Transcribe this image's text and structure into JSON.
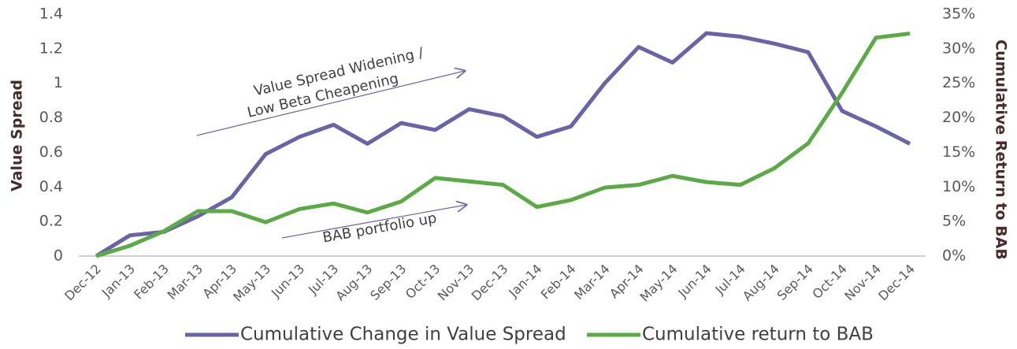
{
  "chart_data": {
    "type": "line",
    "ylabel": "Value Spread",
    "y2label": "Cumulative Return to BAB",
    "annotations": [
      "Value Spread Widening /",
      "Low Beta  Cheapening",
      "BAB portfolio up"
    ],
    "categories": [
      "Dec-12",
      "Jan-13",
      "Feb-13",
      "Mar-13",
      "Apr-13",
      "May-13",
      "Jun-13",
      "Jul-13",
      "Aug-13",
      "Sep-13",
      "Oct-13",
      "Nov-13",
      "Dec-13",
      "Jan-14",
      "Feb-14",
      "Mar-14",
      "Apr-14",
      "May-14",
      "Jun-14",
      "Jul-14",
      "Aug-14",
      "Sep-14",
      "Oct-14",
      "Nov-14",
      "Dec-14"
    ],
    "series": [
      {
        "name": "Cumulative Change in Value Spread",
        "color": "#6b63a8",
        "values": [
          0,
          0.12,
          0.14,
          0.23,
          0.34,
          0.59,
          0.69,
          0.76,
          0.65,
          0.77,
          0.73,
          0.85,
          0.81,
          0.69,
          0.75,
          1.0,
          1.21,
          1.12,
          1.29,
          1.27,
          1.23,
          1.18,
          0.84,
          0.75,
          0.65
        ]
      },
      {
        "name": "Cumulative return to BAB",
        "color": "#5aab46",
        "axis": "y2",
        "values": [
          0,
          1.5,
          3.6,
          6.5,
          6.5,
          4.9,
          6.8,
          7.6,
          6.3,
          7.9,
          11.3,
          10.8,
          10.3,
          7.1,
          8.1,
          9.9,
          10.3,
          11.6,
          10.7,
          10.3,
          12.7,
          16.3,
          23.6,
          31.6,
          32.2
        ]
      }
    ],
    "ylim": [
      0,
      1.4
    ],
    "yticks": [
      0,
      0.2,
      0.4,
      0.6,
      0.8,
      1,
      1.2,
      1.4
    ],
    "y2lim": [
      0,
      35
    ],
    "y2ticks": [
      {
        "value": 0,
        "label": "0%"
      },
      {
        "value": 5,
        "label": "5%"
      },
      {
        "value": 10,
        "label": "10%"
      },
      {
        "value": 15,
        "label": "15%"
      },
      {
        "value": 20,
        "label": "20%"
      },
      {
        "value": 25,
        "label": "25%"
      },
      {
        "value": 30,
        "label": "30%"
      },
      {
        "value": 35,
        "label": "35%"
      }
    ],
    "legend": "bottom",
    "grid": false
  }
}
